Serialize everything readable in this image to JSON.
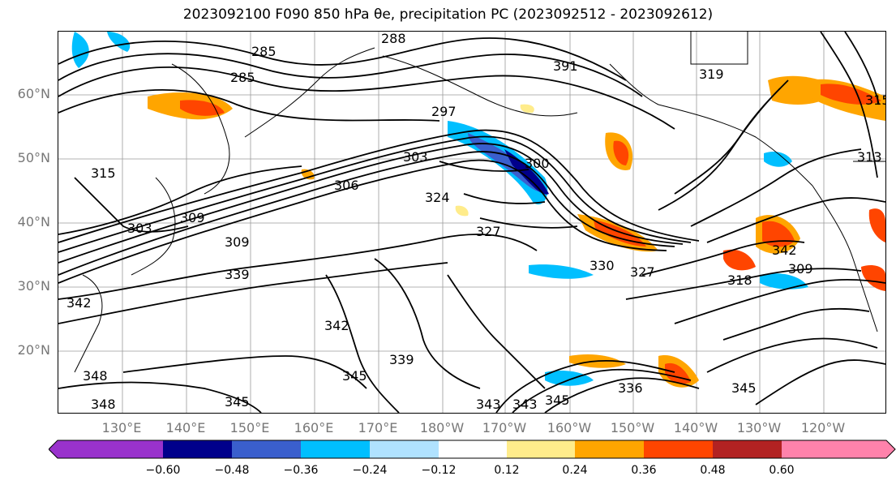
{
  "title": "2023092100 F090 850 hPa θe, precipitation PC (2023092512 - 2023092612)",
  "lat_labels": [
    "60°N",
    "50°N",
    "40°N",
    "30°N",
    "20°N"
  ],
  "lon_labels": [
    "130°E",
    "140°E",
    "150°E",
    "160°E",
    "170°E",
    "180°W",
    "170°W",
    "160°W",
    "150°W",
    "140°W",
    "130°W",
    "120°W"
  ],
  "colorbar": {
    "ticks": [
      "−0.60",
      "−0.48",
      "−0.36",
      "−0.24",
      "−0.12",
      "0.12",
      "0.24",
      "0.36",
      "0.48",
      "0.60"
    ],
    "colors": [
      "#9932cc",
      "#00008b",
      "#3a5fcd",
      "#00bfff",
      "#b0e2ff",
      "#ffffff",
      "#ffec8b",
      "#ffa500",
      "#ff4500",
      "#b22222",
      "#ff82ab"
    ]
  },
  "contour_labels": [
    "285",
    "288",
    "285",
    "391",
    "297",
    "300",
    "303",
    "306",
    "309",
    "315",
    "303",
    "309",
    "324",
    "327",
    "330",
    "327",
    "318",
    "309",
    "313",
    "339",
    "342",
    "342",
    "339",
    "345",
    "348",
    "348",
    "345",
    "342",
    "336",
    "345",
    "343",
    "343",
    "345",
    "315",
    "319"
  ]
}
